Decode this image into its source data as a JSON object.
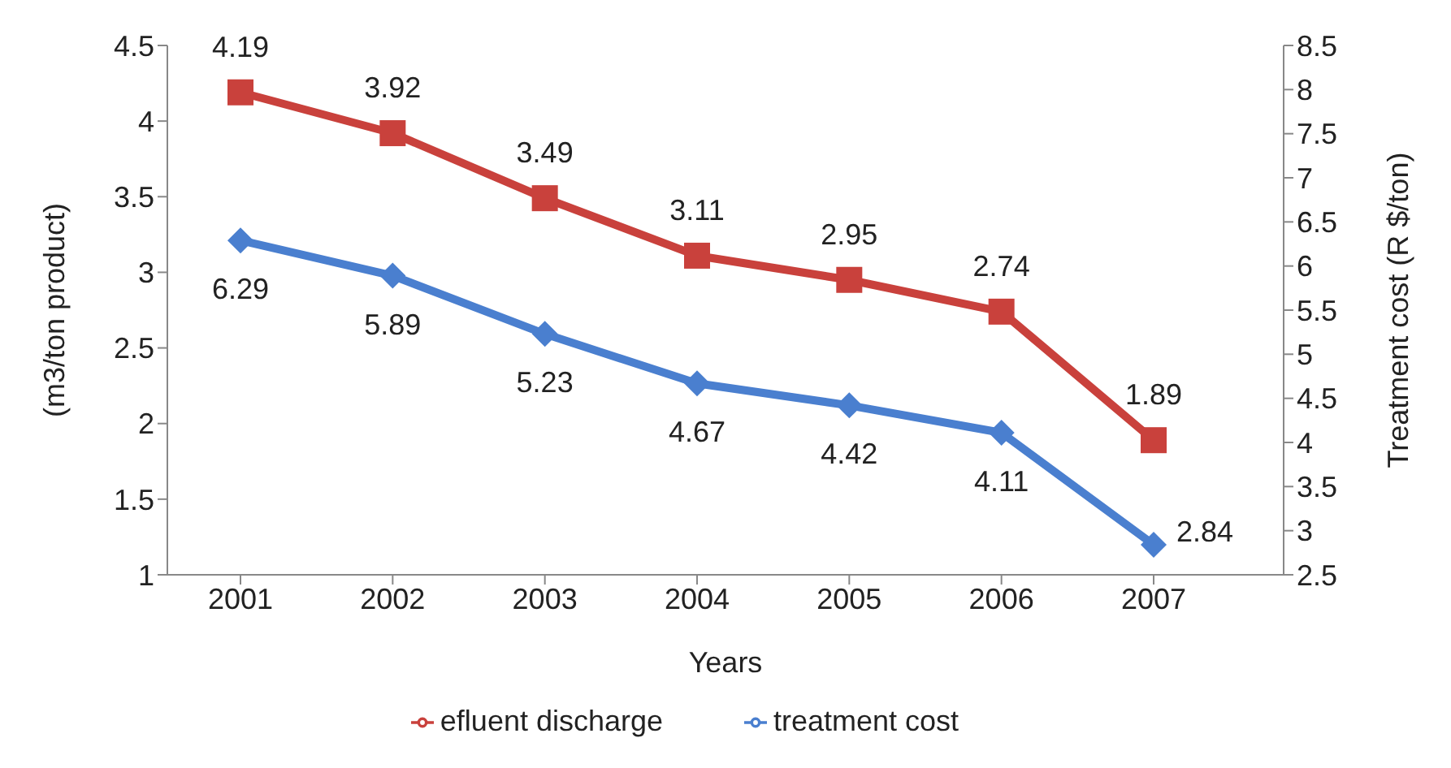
{
  "chart_data": {
    "type": "line",
    "xlabel": "Years",
    "ylabel": "(m3/ton product)",
    "y2label": "Treatment cost (R $/ton)",
    "categories": [
      "2001",
      "2002",
      "2003",
      "2004",
      "2005",
      "2006",
      "2007"
    ],
    "series": [
      {
        "name": "efluent discharge",
        "color": "#c9413c",
        "marker": "square",
        "values": [
          4.19,
          3.92,
          3.49,
          3.11,
          2.95,
          2.74,
          1.89
        ]
      },
      {
        "name": "treatment cost",
        "color": "#4a7fcf",
        "marker": "diamond",
        "axis": "y2",
        "values": [
          6.29,
          5.89,
          5.23,
          4.67,
          4.42,
          4.11,
          2.84
        ]
      }
    ],
    "ylim": [
      1,
      4.5
    ],
    "yticks": [
      1,
      1.5,
      2,
      2.5,
      3,
      3.5,
      4,
      4.5
    ],
    "y2lim": [
      2.5,
      8.5
    ],
    "y2ticks": [
      2.5,
      3,
      3.5,
      4,
      4.5,
      5,
      5.5,
      6,
      6.5,
      7,
      7.5,
      8,
      8.5
    ],
    "data_labels": true,
    "grid": false,
    "legend": "bottom"
  }
}
